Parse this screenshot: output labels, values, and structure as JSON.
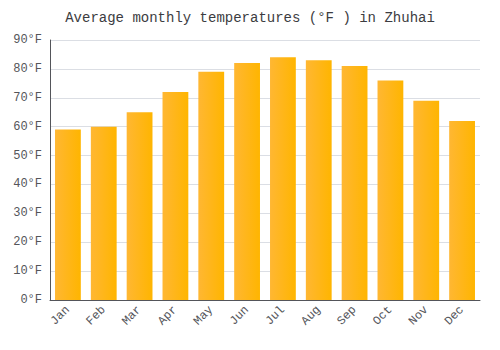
{
  "chart_data": {
    "type": "bar",
    "title": "Average monthly temperatures (°F ) in Zhuhai",
    "categories": [
      "Jan",
      "Feb",
      "Mar",
      "Apr",
      "May",
      "Jun",
      "Jul",
      "Aug",
      "Sep",
      "Oct",
      "Nov",
      "Dec"
    ],
    "values": [
      59,
      60,
      65,
      72,
      79,
      82,
      84,
      83,
      81,
      76,
      69,
      62
    ],
    "color": "#FFA500",
    "ylim": [
      0,
      90
    ],
    "yticks": [
      {
        "value": 0,
        "label": "0°F"
      },
      {
        "value": 10,
        "label": "10°F"
      },
      {
        "value": 20,
        "label": "20°F"
      },
      {
        "value": 30,
        "label": "30°F"
      },
      {
        "value": 40,
        "label": "40°F"
      },
      {
        "value": 50,
        "label": "50°F"
      },
      {
        "value": 60,
        "label": "60°F"
      },
      {
        "value": 70,
        "label": "70°F"
      },
      {
        "value": 80,
        "label": "80°F"
      },
      {
        "value": 90,
        "label": "90°F"
      }
    ],
    "grid": true
  }
}
